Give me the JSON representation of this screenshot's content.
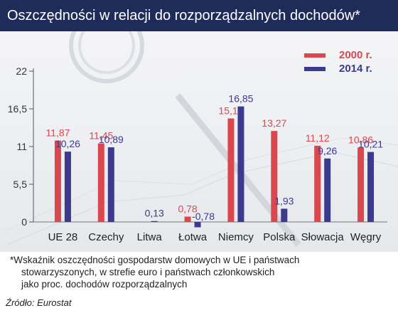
{
  "title": "Oszczędności w relacji do rozporządzalnych dochodów*",
  "chart_data": {
    "type": "bar",
    "categories": [
      "UE 28",
      "Czechy",
      "Litwa",
      "Łotwa",
      "Niemcy",
      "Polska",
      "Słowacja",
      "Węgry"
    ],
    "series": [
      {
        "name": "2000 r.",
        "color": "#d9484f",
        "values": [
          11.87,
          11.45,
          null,
          0.78,
          15.1,
          13.27,
          11.12,
          10.86
        ],
        "labels": [
          "11,87",
          "11,45",
          "",
          "0,78",
          "15,10",
          "13,27",
          "11,12",
          "10,86"
        ]
      },
      {
        "name": "2014 r.",
        "color": "#3b3a8e",
        "values": [
          10.26,
          10.89,
          0.13,
          -0.78,
          16.85,
          1.93,
          9.26,
          10.21
        ],
        "labels": [
          "10,26",
          "10,89",
          "0,13",
          "-0,78",
          "16,85",
          "1,93",
          "9,26",
          "10,21"
        ]
      }
    ],
    "yticks": [
      0,
      5.5,
      11,
      16.5,
      22
    ],
    "ytick_labels": [
      "0",
      "5,5",
      "11",
      "16,5",
      "22"
    ],
    "ylim": [
      -1,
      22
    ],
    "legend_position": "top-right",
    "grid": false
  },
  "footnote": {
    "line1": "*Wskaźnik oszczędności gospodarstw domowych w UE i państwach",
    "line2": "stowarzyszonych, w strefie euro i państwach członkowskich",
    "line3": "jako proc. dochodów rozporządzalnych"
  },
  "source": "Źródło: Eurostat"
}
